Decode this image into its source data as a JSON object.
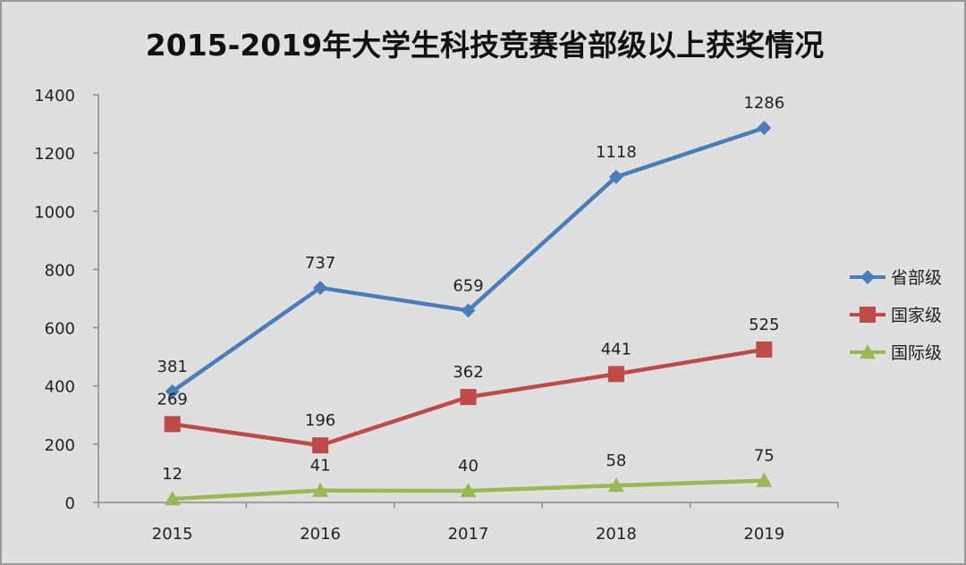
{
  "chart_data": {
    "type": "line",
    "title": "2015-2019年大学生科技竞赛省部级以上获奖情况",
    "categories": [
      "2015",
      "2016",
      "2017",
      "2018",
      "2019"
    ],
    "ylim": [
      0,
      1400
    ],
    "yticks": [
      0,
      200,
      400,
      600,
      800,
      1000,
      1200,
      1400
    ],
    "ytick_labels": [
      "0",
      "200",
      "400",
      "600",
      "800",
      "1000",
      "1200",
      "1400"
    ],
    "grid": false,
    "legend_position": "right",
    "series": [
      {
        "name": "省部级",
        "values": [
          381,
          737,
          659,
          1118,
          1286
        ],
        "labels": [
          "381",
          "737",
          "659",
          "1118",
          "1286"
        ],
        "color": "#4a7ebb",
        "marker": "diamond"
      },
      {
        "name": "国家级",
        "values": [
          269,
          196,
          362,
          441,
          525
        ],
        "labels": [
          "269",
          "196",
          "362",
          "441",
          "525"
        ],
        "color": "#be4b48",
        "marker": "square"
      },
      {
        "name": "国际级",
        "values": [
          12,
          41,
          40,
          58,
          75
        ],
        "labels": [
          "12",
          "41",
          "40",
          "58",
          "75"
        ],
        "color": "#98b954",
        "marker": "triangle"
      }
    ]
  }
}
